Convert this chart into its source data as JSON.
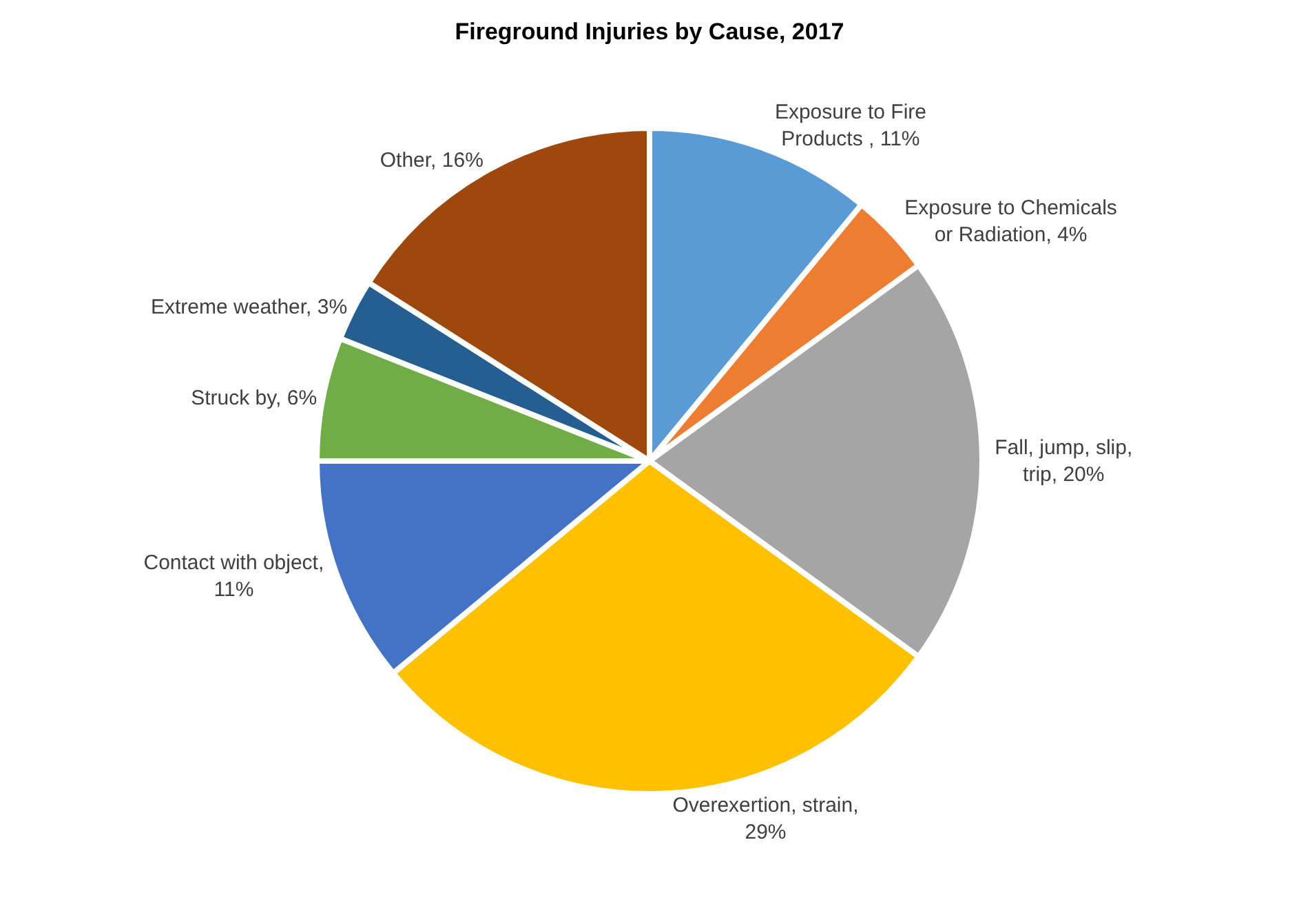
{
  "chart_data": {
    "type": "pie",
    "title": "Fireground Injuries by Cause, 2017",
    "categories": [
      "Exposure to Fire Products , 11%",
      "Exposure to Chemicals or Radiation, 4%",
      "Fall, jump, slip, trip, 20%",
      "Overexertion, strain, 29%",
      "Contact with object, 11%",
      "Struck by, 6%",
      "Extreme weather, 3%",
      "Other, 16%"
    ],
    "values": [
      11,
      4,
      20,
      29,
      11,
      6,
      3,
      16
    ],
    "colors": [
      "#5b9bd5",
      "#ed7d31",
      "#a5a5a5",
      "#ffc000",
      "#4472c4",
      "#70ad47",
      "#255e91",
      "#9e480e"
    ],
    "legend": false
  }
}
